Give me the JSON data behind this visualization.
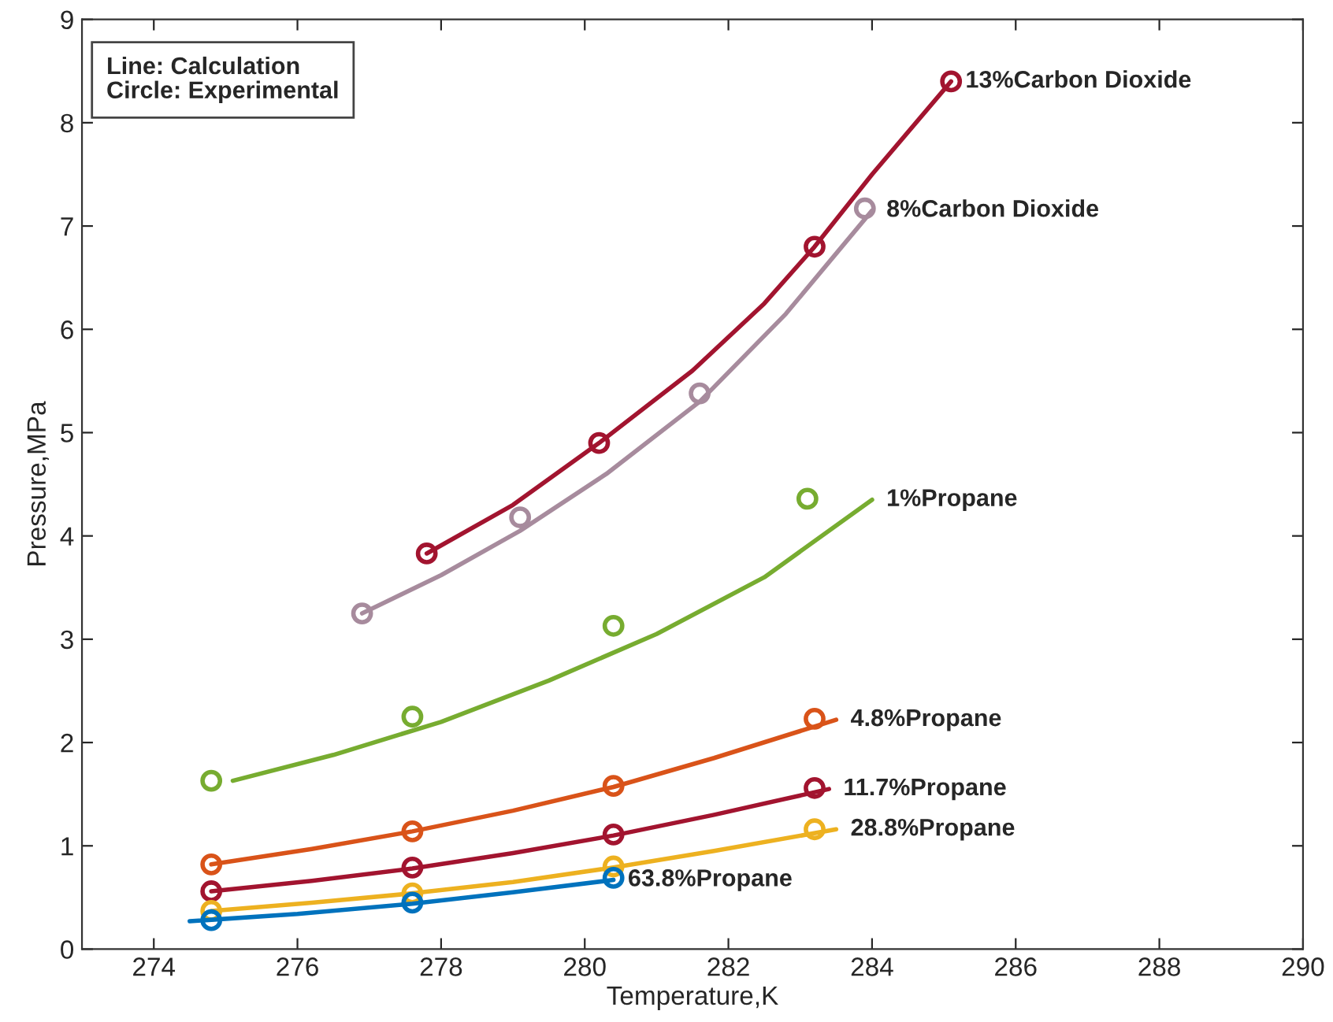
{
  "chart_data": {
    "type": "line",
    "xlabel": "Temperature,K",
    "ylabel": "Pressure,MPa",
    "annotations": [
      "Line: Calculation\nCircle: Experimental"
    ],
    "xlim": [
      273,
      290
    ],
    "xticks": [
      274,
      276,
      278,
      280,
      282,
      284,
      286,
      288,
      290
    ],
    "ylim": [
      0,
      9
    ],
    "yticks": [
      0,
      1,
      2,
      3,
      4,
      5,
      6,
      7,
      8,
      9
    ],
    "grid": false,
    "legend": false,
    "series": [
      {
        "name": "13%Carbon Dioxide",
        "color": "#a2142f",
        "x": [
          277.8,
          279,
          280.2,
          281.5,
          282.5,
          283.2,
          284,
          285.1
        ],
        "values": [
          3.83,
          4.3,
          4.9,
          5.6,
          6.25,
          6.8,
          7.5,
          8.4
        ]
      },
      {
        "type": "scatter",
        "marker": "circle",
        "color": "#a2142f",
        "x": [
          277.8,
          280.2,
          283.2,
          285.1
        ],
        "values": [
          3.83,
          4.9,
          6.8,
          8.4
        ]
      },
      {
        "name": "8%Carbon Dioxide",
        "color": "#a78b9d",
        "x": [
          276.9,
          278,
          279.1,
          280.3,
          281.6,
          282.8,
          284
        ],
        "values": [
          3.25,
          3.62,
          4.05,
          4.6,
          5.3,
          6.15,
          7.15
        ]
      },
      {
        "type": "scatter",
        "marker": "circle",
        "color": "#a78b9d",
        "x": [
          276.9,
          279.1,
          281.6,
          283.9
        ],
        "values": [
          3.25,
          4.18,
          5.38,
          7.17
        ]
      },
      {
        "name": "1%Propane",
        "color": "#77ac30",
        "x": [
          275.1,
          276.5,
          278,
          279.5,
          281,
          282.5,
          284
        ],
        "values": [
          1.63,
          1.88,
          2.2,
          2.6,
          3.05,
          3.6,
          4.35
        ]
      },
      {
        "type": "scatter",
        "marker": "circle",
        "color": "#77ac30",
        "x": [
          274.8,
          277.6,
          280.4,
          283.1
        ],
        "values": [
          1.63,
          2.25,
          3.13,
          4.36
        ]
      },
      {
        "name": "4.8%Propane",
        "color": "#d95319",
        "x": [
          274.8,
          276.2,
          277.6,
          279,
          280.4,
          281.8,
          283.5
        ],
        "values": [
          0.82,
          0.97,
          1.14,
          1.34,
          1.57,
          1.85,
          2.22
        ]
      },
      {
        "type": "scatter",
        "marker": "circle",
        "color": "#d95319",
        "x": [
          274.8,
          277.6,
          280.4,
          283.2
        ],
        "values": [
          0.82,
          1.14,
          1.58,
          2.23
        ]
      },
      {
        "name": "11.7%Propane",
        "color": "#a2142f",
        "x": [
          274.8,
          276.2,
          277.6,
          279,
          280.4,
          281.8,
          283.4
        ],
        "values": [
          0.56,
          0.66,
          0.78,
          0.93,
          1.1,
          1.3,
          1.55
        ]
      },
      {
        "type": "scatter",
        "marker": "circle",
        "color": "#a2142f",
        "x": [
          274.8,
          277.6,
          280.4,
          283.2
        ],
        "values": [
          0.56,
          0.79,
          1.11,
          1.56
        ]
      },
      {
        "name": "28.8%Propane",
        "color": "#edb120",
        "x": [
          274.8,
          276.2,
          277.6,
          279,
          280.4,
          281.8,
          283.5
        ],
        "values": [
          0.37,
          0.45,
          0.54,
          0.65,
          0.79,
          0.95,
          1.16
        ]
      },
      {
        "type": "scatter",
        "marker": "circle",
        "color": "#edb120",
        "x": [
          274.8,
          277.6,
          280.4,
          283.2
        ],
        "values": [
          0.37,
          0.54,
          0.8,
          1.16
        ]
      },
      {
        "name": "63.8%Propane",
        "color": "#0072bd",
        "x": [
          274.5,
          276,
          277.6,
          279,
          280.4
        ],
        "values": [
          0.27,
          0.34,
          0.44,
          0.55,
          0.67
        ]
      },
      {
        "type": "scatter",
        "marker": "circle",
        "color": "#0072bd",
        "x": [
          274.8,
          277.6,
          280.4
        ],
        "values": [
          0.28,
          0.45,
          0.69
        ]
      }
    ]
  }
}
